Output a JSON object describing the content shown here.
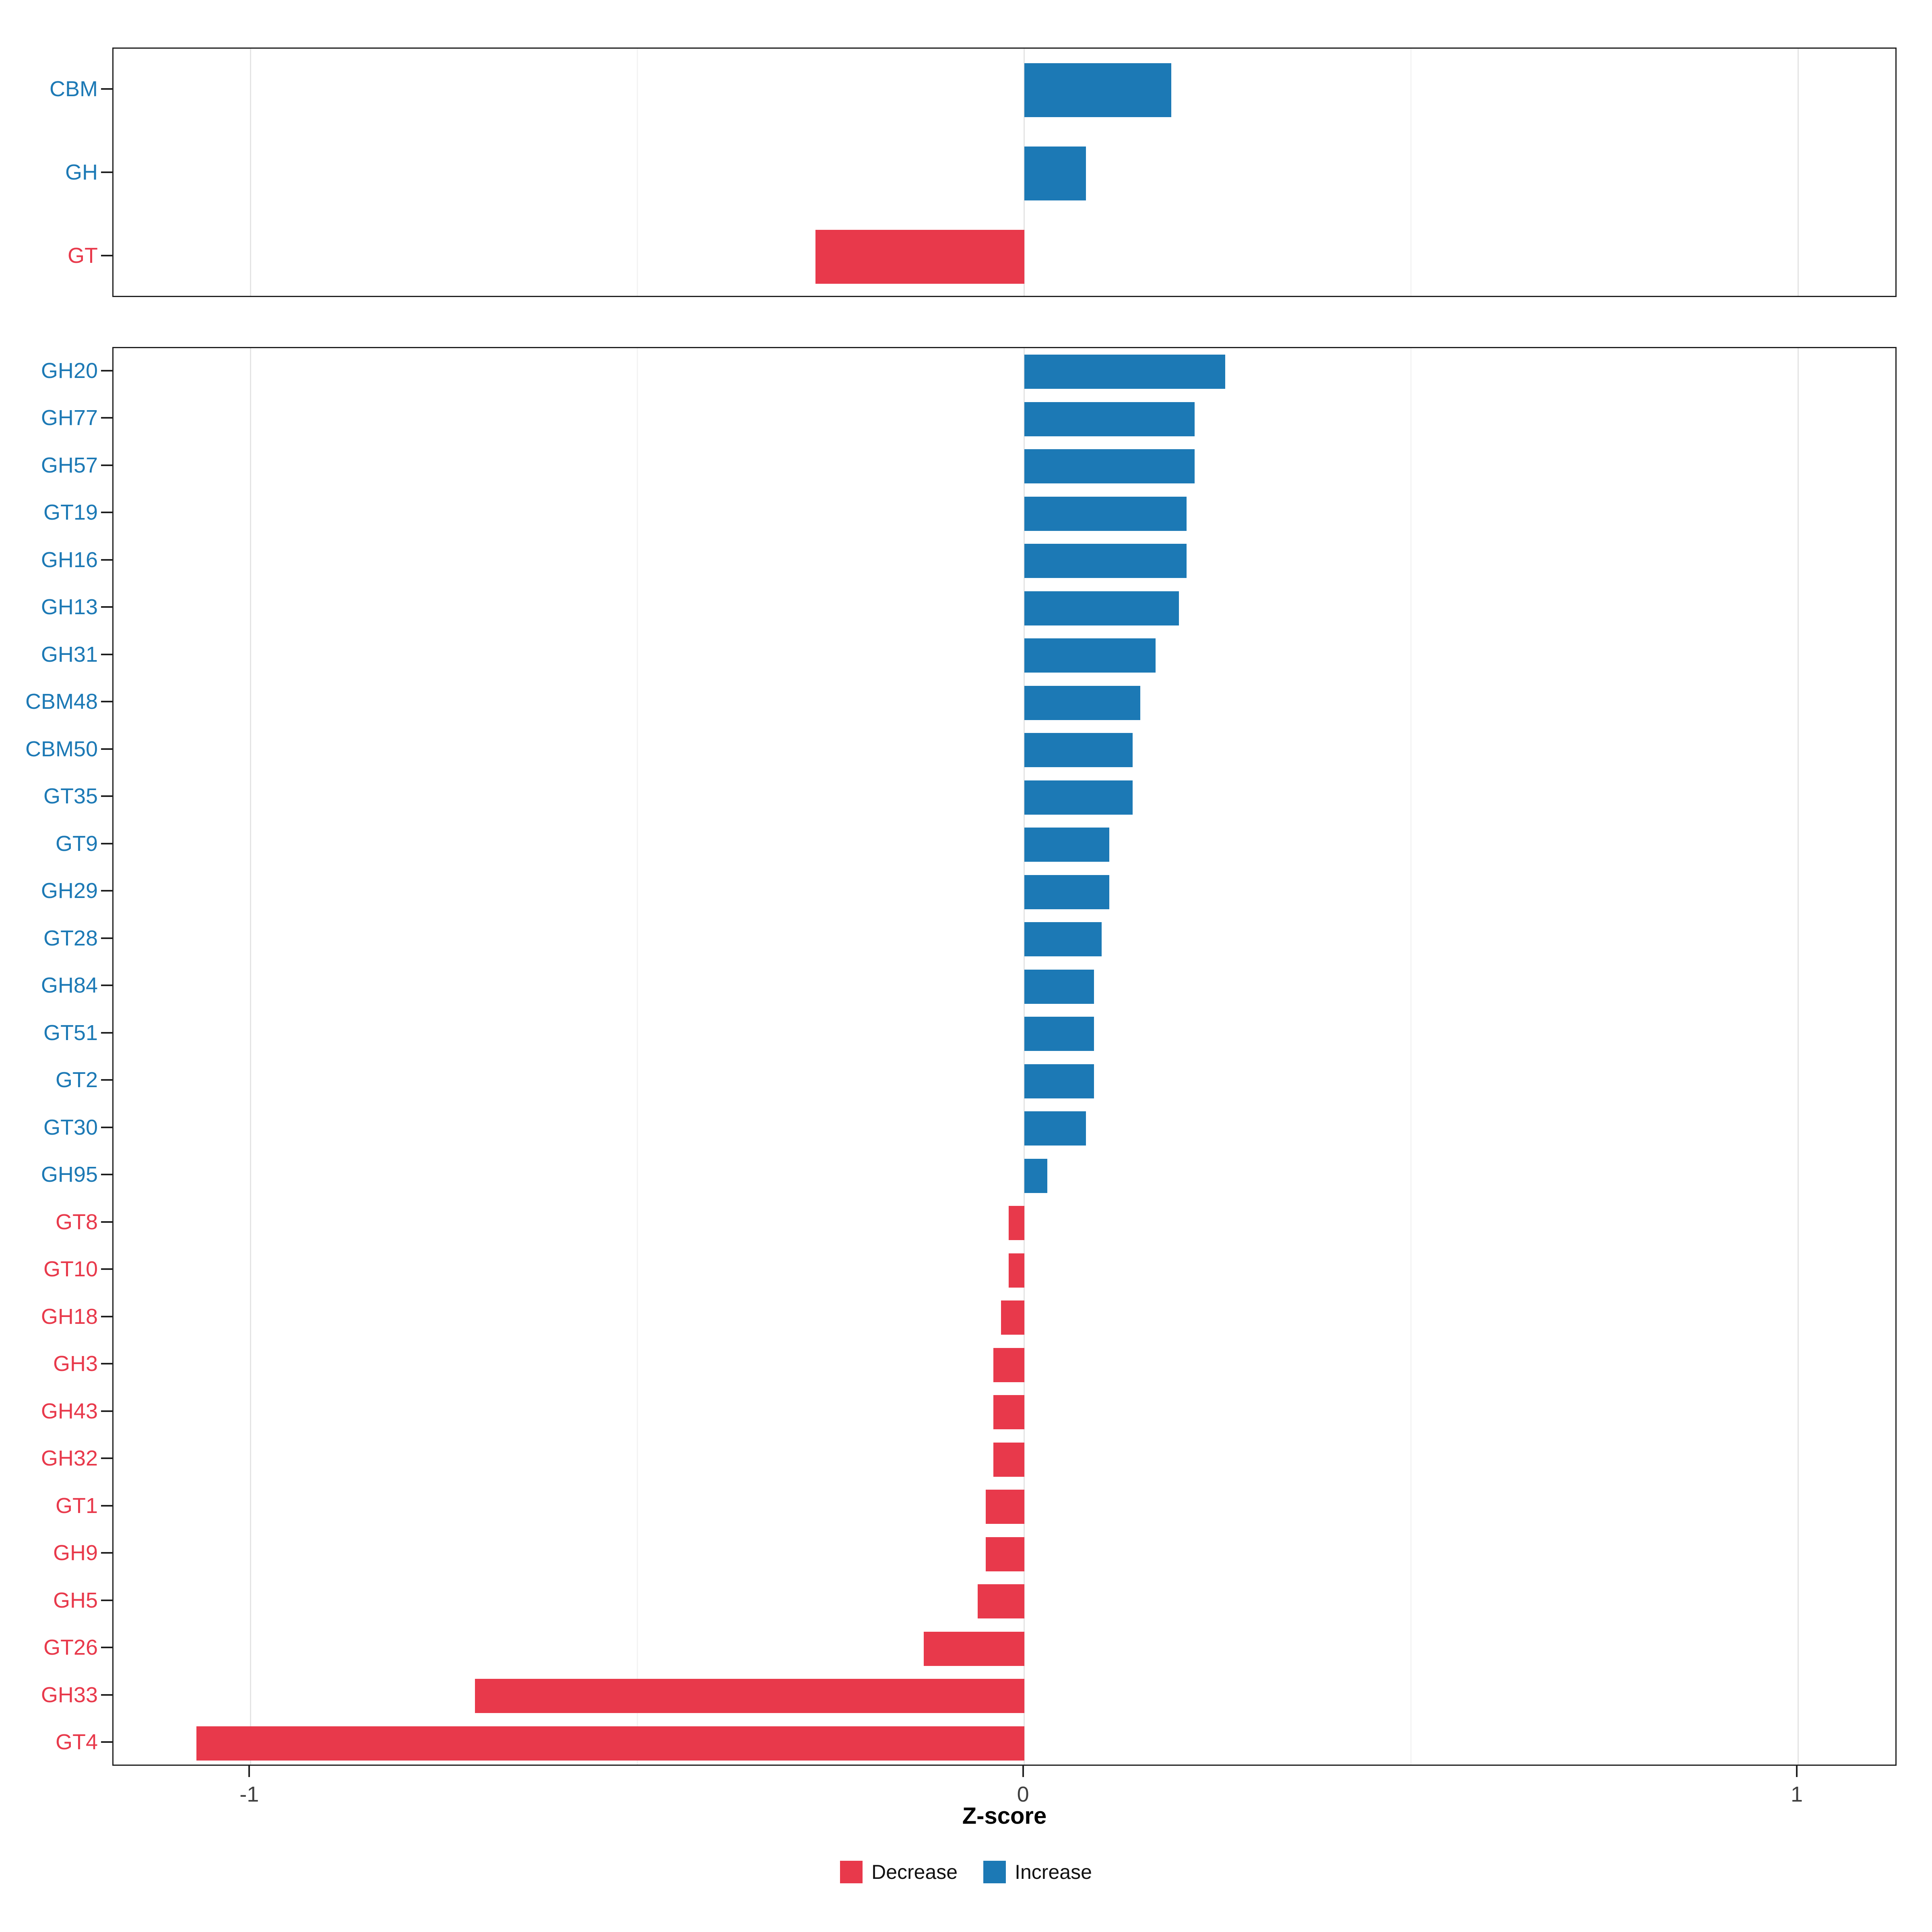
{
  "chart_data": {
    "type": "bar",
    "orientation": "horizontal",
    "xlabel": "Z-score",
    "xlim": [
      -1.177,
      1.129
    ],
    "x_ticks": [
      {
        "value": -1,
        "label": "-1"
      },
      {
        "value": 0,
        "label": "0"
      },
      {
        "value": 1,
        "label": "1"
      }
    ],
    "minor_gridlines": [
      -0.5,
      0.5
    ],
    "colors": {
      "increase": "#1C79B5",
      "decrease": "#E8394B"
    },
    "legend": [
      {
        "label": "Decrease",
        "key": "decrease"
      },
      {
        "label": "Increase",
        "key": "increase"
      }
    ],
    "panels": [
      {
        "name": "cazyme-classes",
        "categories": [
          "CBM",
          "GH",
          "GT"
        ],
        "values": [
          0.19,
          0.08,
          -0.27
        ]
      },
      {
        "name": "cazyme-families",
        "categories": [
          "GH20",
          "GH77",
          "GH57",
          "GT19",
          "GH16",
          "GH13",
          "GH31",
          "CBM48",
          "CBM50",
          "GT35",
          "GT9",
          "GH29",
          "GT28",
          "GH84",
          "GT51",
          "GT2",
          "GT30",
          "GH95",
          "GT8",
          "GT10",
          "GH18",
          "GH3",
          "GH43",
          "GH32",
          "GT1",
          "GH9",
          "GH5",
          "GT26",
          "GH33",
          "GT4"
        ],
        "values": [
          0.26,
          0.22,
          0.22,
          0.21,
          0.21,
          0.2,
          0.17,
          0.15,
          0.14,
          0.14,
          0.11,
          0.11,
          0.1,
          0.09,
          0.09,
          0.09,
          0.08,
          0.03,
          -0.02,
          -0.02,
          -0.03,
          -0.04,
          -0.04,
          -0.04,
          -0.05,
          -0.05,
          -0.06,
          -0.13,
          -0.71,
          -1.07
        ]
      }
    ]
  }
}
